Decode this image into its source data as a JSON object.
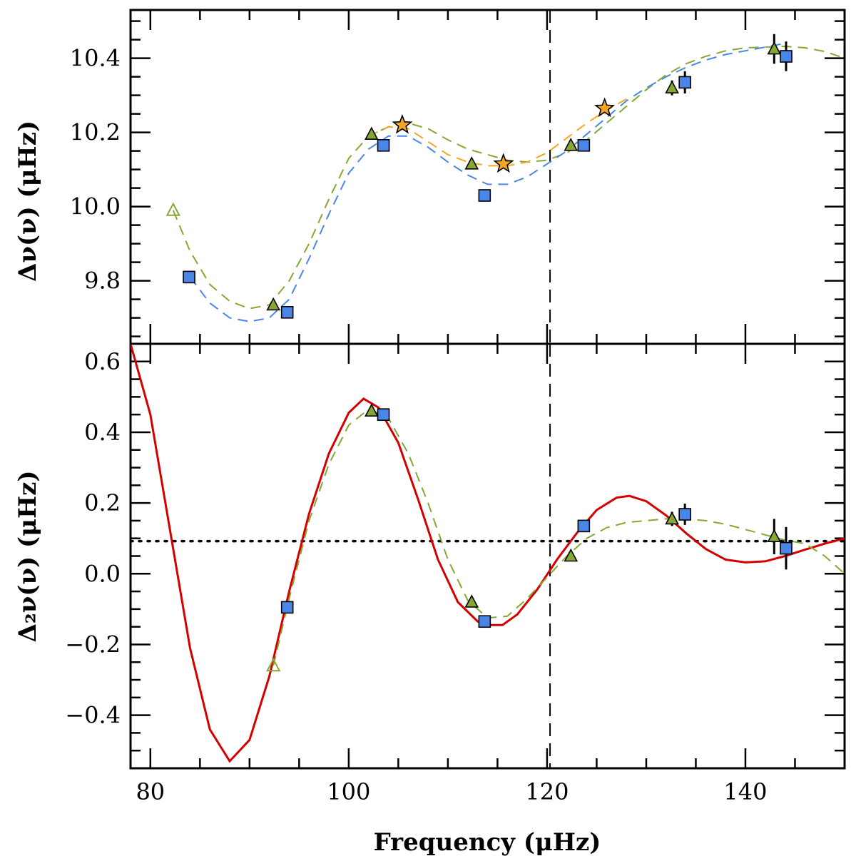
{
  "chart_data": [
    {
      "panel": "top",
      "type": "scatter",
      "xlabel": "",
      "ylabel": "Δν(ν) (μHz)",
      "xlim": [
        78,
        150
      ],
      "ylim": [
        9.63,
        10.53
      ],
      "x_ticks": [
        80,
        100,
        120,
        140
      ],
      "y_ticks": [
        9.8,
        10.0,
        10.2,
        10.4
      ],
      "y_tick_labels": [
        "9.8",
        "10.0",
        "10.2",
        "10.4"
      ],
      "vline_x": 120.3,
      "series": [
        {
          "marker": "square",
          "color": "#4a86e8",
          "points": [
            {
              "x": 83.9,
              "y": 9.81
            },
            {
              "x": 93.8,
              "y": 9.715
            },
            {
              "x": 103.5,
              "y": 10.165
            },
            {
              "x": 113.7,
              "y": 10.03
            },
            {
              "x": 123.7,
              "y": 10.165
            },
            {
              "x": 133.9,
              "y": 10.335,
              "err": 0.03
            },
            {
              "x": 144.1,
              "y": 10.405,
              "err": 0.04
            }
          ]
        },
        {
          "marker": "triangle",
          "color": "#86a832",
          "points": [
            {
              "x": 82.3,
              "y": 9.99,
              "open": true
            },
            {
              "x": 92.4,
              "y": 9.735
            },
            {
              "x": 102.3,
              "y": 10.195
            },
            {
              "x": 112.4,
              "y": 10.115
            },
            {
              "x": 122.4,
              "y": 10.165
            },
            {
              "x": 132.6,
              "y": 10.32,
              "err": 0.02
            },
            {
              "x": 142.9,
              "y": 10.425,
              "err": 0.04
            }
          ]
        },
        {
          "marker": "star",
          "color": "#f5a623",
          "points": [
            {
              "x": 105.4,
              "y": 10.22
            },
            {
              "x": 115.6,
              "y": 10.115
            },
            {
              "x": 125.8,
              "y": 10.265
            }
          ]
        }
      ],
      "curves": [
        {
          "style": "dashed",
          "color": "#86a832",
          "points": [
            [
              82.3,
              9.99
            ],
            [
              84,
              9.88
            ],
            [
              86,
              9.79
            ],
            [
              88,
              9.745
            ],
            [
              90,
              9.725
            ],
            [
              92,
              9.735
            ],
            [
              94,
              9.8
            ],
            [
              96,
              9.9
            ],
            [
              98,
              10.02
            ],
            [
              100,
              10.13
            ],
            [
              102,
              10.19
            ],
            [
              104,
              10.215
            ],
            [
              106,
              10.225
            ],
            [
              108,
              10.21
            ],
            [
              110,
              10.18
            ],
            [
              112,
              10.155
            ],
            [
              114,
              10.14
            ],
            [
              116,
              10.125
            ],
            [
              118,
              10.12
            ],
            [
              120,
              10.125
            ],
            [
              122,
              10.145
            ],
            [
              124,
              10.18
            ],
            [
              126,
              10.225
            ],
            [
              128,
              10.27
            ],
            [
              130,
              10.315
            ],
            [
              132,
              10.355
            ],
            [
              134,
              10.385
            ],
            [
              136,
              10.405
            ],
            [
              138,
              10.42
            ],
            [
              140,
              10.428
            ],
            [
              142,
              10.43
            ],
            [
              144,
              10.432
            ],
            [
              146,
              10.428
            ],
            [
              148,
              10.418
            ],
            [
              150,
              10.4
            ]
          ]
        },
        {
          "style": "dashed",
          "color": "#4a86e8",
          "points": [
            [
              84,
              9.81
            ],
            [
              86,
              9.74
            ],
            [
              88,
              9.7
            ],
            [
              90,
              9.69
            ],
            [
              92,
              9.7
            ],
            [
              94,
              9.75
            ],
            [
              96,
              9.86
            ],
            [
              98,
              9.98
            ],
            [
              100,
              10.09
            ],
            [
              102,
              10.155
            ],
            [
              104,
              10.19
            ],
            [
              106,
              10.19
            ],
            [
              108,
              10.16
            ],
            [
              110,
              10.12
            ],
            [
              112,
              10.085
            ],
            [
              114,
              10.06
            ],
            [
              116,
              10.06
            ],
            [
              118,
              10.08
            ],
            [
              120,
              10.115
            ],
            [
              122,
              10.15
            ],
            [
              124,
              10.195
            ],
            [
              126,
              10.24
            ],
            [
              128,
              10.285
            ],
            [
              130,
              10.32
            ],
            [
              132,
              10.35
            ],
            [
              134,
              10.375
            ],
            [
              136,
              10.395
            ],
            [
              138,
              10.41
            ],
            [
              140,
              10.42
            ],
            [
              142,
              10.43
            ],
            [
              144,
              10.44
            ]
          ]
        },
        {
          "style": "dashed",
          "color": "#f5a623",
          "points": [
            [
              102,
              10.19
            ],
            [
              104,
              10.215
            ],
            [
              106,
              10.21
            ],
            [
              108,
              10.175
            ],
            [
              110,
              10.14
            ],
            [
              112,
              10.12
            ],
            [
              114,
              10.11
            ],
            [
              116,
              10.11
            ],
            [
              118,
              10.12
            ],
            [
              120,
              10.145
            ],
            [
              122,
              10.185
            ],
            [
              124,
              10.225
            ],
            [
              126,
              10.26
            ],
            [
              128,
              10.29
            ]
          ]
        }
      ]
    },
    {
      "panel": "bottom",
      "type": "scatter",
      "xlabel": "Frequency (μHz)",
      "ylabel": "Δ₂ν(ν) (μHz)",
      "xlim": [
        78,
        150
      ],
      "ylim": [
        -0.55,
        0.65
      ],
      "x_ticks": [
        80,
        100,
        120,
        140
      ],
      "x_tick_labels": [
        "80",
        "100",
        "120",
        "140"
      ],
      "y_ticks": [
        -0.4,
        -0.2,
        0.0,
        0.2,
        0.4,
        0.6
      ],
      "y_tick_labels": [
        "−0.4",
        "−0.2",
        "0.0",
        "0.2",
        "0.4",
        "0.6"
      ],
      "vline_x": 120.3,
      "hline_y": 0.092,
      "series": [
        {
          "marker": "square",
          "color": "#4a86e8",
          "points": [
            {
              "x": 93.8,
              "y": -0.095
            },
            {
              "x": 103.5,
              "y": 0.45
            },
            {
              "x": 113.7,
              "y": -0.135
            },
            {
              "x": 123.7,
              "y": 0.135
            },
            {
              "x": 133.9,
              "y": 0.168,
              "err": 0.03
            },
            {
              "x": 144.1,
              "y": 0.072,
              "err": 0.06
            }
          ]
        },
        {
          "marker": "triangle",
          "color": "#86a832",
          "points": [
            {
              "x": 92.4,
              "y": -0.26,
              "open": true
            },
            {
              "x": 102.3,
              "y": 0.46
            },
            {
              "x": 112.4,
              "y": -0.08
            },
            {
              "x": 122.4,
              "y": 0.05
            },
            {
              "x": 132.6,
              "y": 0.155,
              "err": 0.02
            },
            {
              "x": 142.9,
              "y": 0.105,
              "err": 0.05
            }
          ]
        }
      ],
      "curves": [
        {
          "style": "solid",
          "color": "#d40000",
          "points": [
            [
              78,
              0.65
            ],
            [
              80,
              0.45
            ],
            [
              82,
              0.12
            ],
            [
              84,
              -0.21
            ],
            [
              86,
              -0.44
            ],
            [
              88,
              -0.53
            ],
            [
              90,
              -0.47
            ],
            [
              92,
              -0.29
            ],
            [
              94,
              -0.05
            ],
            [
              96,
              0.17
            ],
            [
              98,
              0.34
            ],
            [
              100,
              0.455
            ],
            [
              101.5,
              0.495
            ],
            [
              103,
              0.47
            ],
            [
              105,
              0.37
            ],
            [
              107,
              0.21
            ],
            [
              109,
              0.04
            ],
            [
              111,
              -0.08
            ],
            [
              113,
              -0.135
            ],
            [
              114,
              -0.145
            ],
            [
              115.5,
              -0.145
            ],
            [
              117,
              -0.115
            ],
            [
              119,
              -0.045
            ],
            [
              121,
              0.04
            ],
            [
              123,
              0.115
            ],
            [
              125,
              0.18
            ],
            [
              127,
              0.215
            ],
            [
              128.3,
              0.22
            ],
            [
              130,
              0.205
            ],
            [
              132,
              0.165
            ],
            [
              134,
              0.115
            ],
            [
              136,
              0.07
            ],
            [
              138,
              0.04
            ],
            [
              140,
              0.032
            ],
            [
              142,
              0.035
            ],
            [
              144,
              0.05
            ],
            [
              146,
              0.068
            ],
            [
              148,
              0.085
            ],
            [
              150,
              0.1
            ]
          ]
        },
        {
          "style": "dashed",
          "color": "#86a832",
          "points": [
            [
              92.4,
              -0.26
            ],
            [
              94,
              -0.07
            ],
            [
              96,
              0.15
            ],
            [
              98,
              0.31
            ],
            [
              100,
              0.42
            ],
            [
              102,
              0.465
            ],
            [
              104,
              0.44
            ],
            [
              106,
              0.34
            ],
            [
              108,
              0.2
            ],
            [
              110,
              0.04
            ],
            [
              112,
              -0.075
            ],
            [
              114,
              -0.125
            ],
            [
              116,
              -0.12
            ],
            [
              118,
              -0.07
            ],
            [
              120,
              -0.01
            ],
            [
              122,
              0.05
            ],
            [
              124,
              0.1
            ],
            [
              126,
              0.13
            ],
            [
              128,
              0.145
            ],
            [
              130,
              0.15
            ],
            [
              132,
              0.155
            ],
            [
              134,
              0.155
            ],
            [
              136,
              0.15
            ],
            [
              138,
              0.14
            ],
            [
              140,
              0.125
            ],
            [
              142,
              0.11
            ],
            [
              144,
              0.095
            ],
            [
              146,
              0.085
            ],
            [
              148,
              0.05
            ],
            [
              150,
              0.0
            ]
          ]
        }
      ]
    }
  ]
}
